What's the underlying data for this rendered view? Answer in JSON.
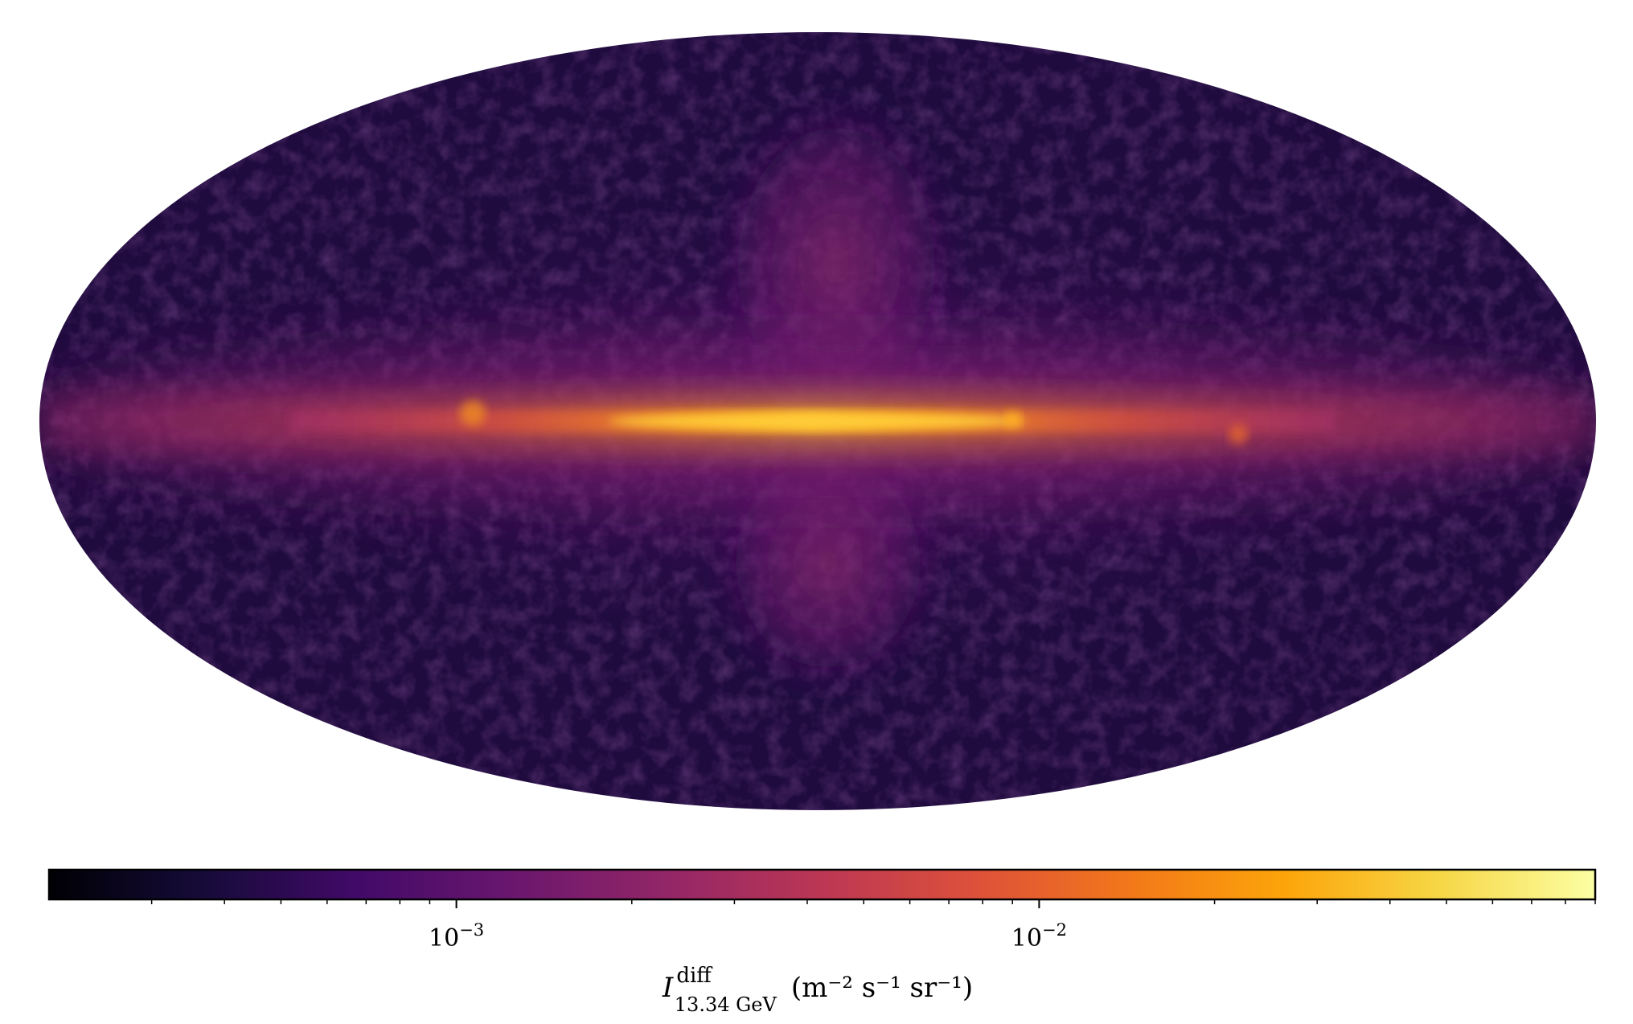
{
  "chart_data": {
    "type": "heatmap",
    "projection": "Mollweide all-sky map",
    "colormap": "inferno",
    "scale": "log",
    "colorbar": {
      "orientation": "horizontal",
      "placement": "bottom",
      "range": [
        0.0002,
        0.09
      ],
      "major_ticks": [
        {
          "value": 0.001,
          "label_base": "10",
          "label_exp": "−3"
        },
        {
          "value": 0.01,
          "label_base": "10",
          "label_exp": "−2"
        }
      ],
      "minor_ticks": [
        0.0003,
        0.0004,
        0.0005,
        0.0006,
        0.0007,
        0.0008,
        0.0009,
        0.002,
        0.003,
        0.004,
        0.005,
        0.006,
        0.007,
        0.008,
        0.009,
        0.02,
        0.03,
        0.04,
        0.05,
        0.06,
        0.07,
        0.08,
        0.09
      ],
      "label": {
        "symbol": "I",
        "superscript": "diff",
        "subscript": "13.34 GeV",
        "units": "(m⁻² s⁻¹ sr⁻¹)"
      }
    },
    "features": {
      "galactic_plane_peak": 0.02,
      "bubble_level": 0.001,
      "background_level": 0.0004
    }
  }
}
